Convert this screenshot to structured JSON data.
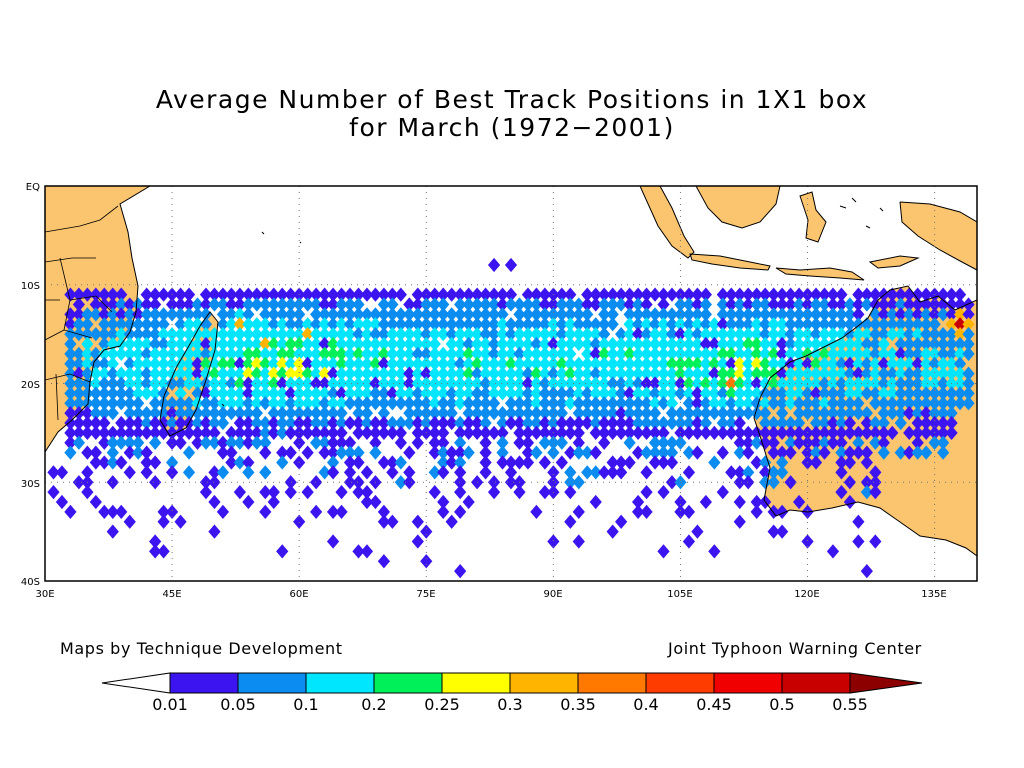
{
  "title": {
    "line1": "Average Number of Best Track Positions in 1X1 box",
    "line2": "for March (1972−2001)"
  },
  "map": {
    "lat_labels": [
      "EQ",
      "10S",
      "20S",
      "30S",
      "40S"
    ],
    "lon_labels": [
      "30E",
      "45E",
      "60E",
      "75E",
      "90E",
      "105E",
      "120E",
      "135E"
    ],
    "lon_range": [
      30,
      140
    ],
    "lat_range": [
      0,
      -40
    ],
    "land_color": "#fbc46e",
    "grid": "dotted"
  },
  "credits": {
    "left": "Maps by Technique Development",
    "right": "Joint Typhoon Warning Center"
  },
  "colorbar": {
    "labels": [
      "0.01",
      "0.05",
      "0.1",
      "0.2",
      "0.25",
      "0.3",
      "0.35",
      "0.4",
      "0.45",
      "0.5",
      "0.55"
    ],
    "colors": [
      "#ffffff",
      "#3c14f0",
      "#0a8cf0",
      "#00e6ff",
      "#00f05a",
      "#ffff00",
      "#ffb400",
      "#ff7800",
      "#ff3c00",
      "#f00000",
      "#c80000",
      "#8c0000"
    ]
  },
  "chart_data": {
    "type": "heatmap",
    "title": "Average Number of Best Track Positions in 1X1 box for March (1972-2001)",
    "x_axis": "longitude",
    "y_axis": "latitude",
    "xlim": [
      30,
      140
    ],
    "ylim": [
      -40,
      0
    ],
    "bins": [
      0.01,
      0.05,
      0.1,
      0.2,
      0.25,
      0.3,
      0.35,
      0.4,
      0.45,
      0.5,
      0.55
    ],
    "main_band": {
      "lon": [
        35,
        140
      ],
      "lat": [
        -25,
        -11
      ]
    },
    "hotspots": [
      {
        "lon": 56,
        "lat": -16,
        "value": 0.3
      },
      {
        "lon": 61,
        "lat": -15,
        "value": 0.3
      },
      {
        "lon": 53,
        "lat": -14,
        "value": 0.3
      },
      {
        "lon": 111,
        "lat": -20,
        "value": 0.35
      },
      {
        "lon": 138,
        "lat": -14,
        "value": 0.5
      }
    ]
  }
}
